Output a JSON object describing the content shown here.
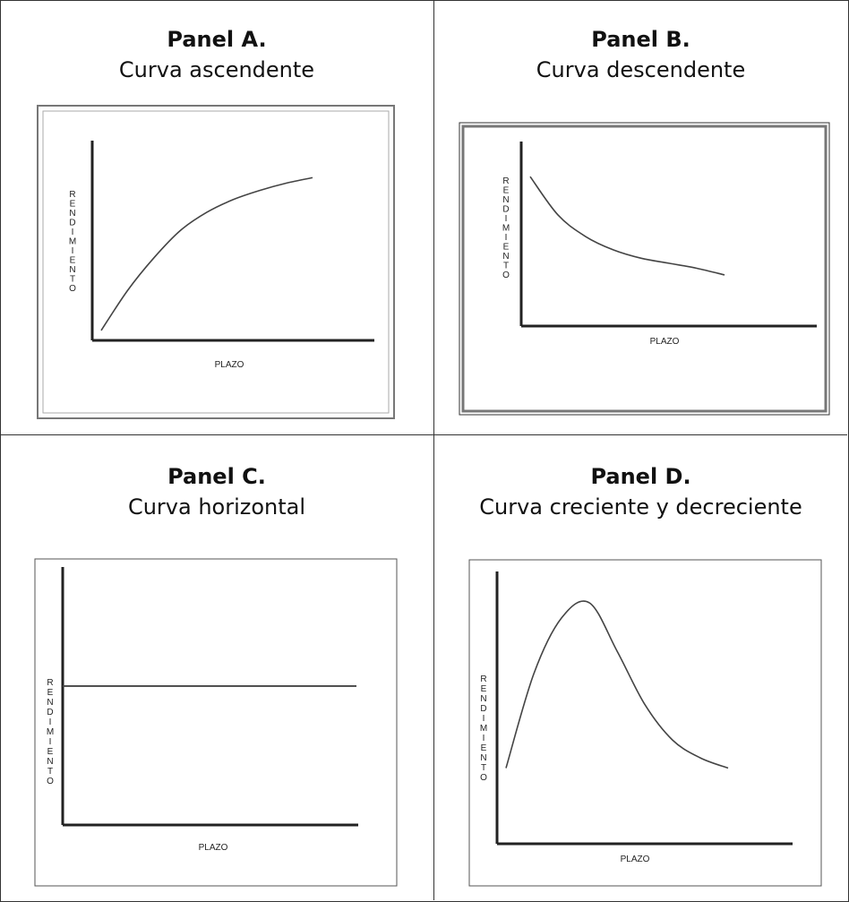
{
  "panels": [
    {
      "heading": "Panel A.",
      "subtitle": "Curva ascendente"
    },
    {
      "heading": "Panel B.",
      "subtitle": "Curva descendente"
    },
    {
      "heading": "Panel C.",
      "subtitle": "Curva horizontal"
    },
    {
      "heading": "Panel D.",
      "subtitle": "Curva creciente y decreciente"
    }
  ],
  "chart_data": [
    {
      "type": "line",
      "title": "Curva ascendente",
      "xlabel": "PLAZO",
      "ylabel": "RENDIMIENTO",
      "xlim": [
        0,
        10
      ],
      "ylim": [
        0,
        10
      ],
      "series": [
        {
          "x": [
            0,
            1,
            2,
            3,
            4,
            5,
            6,
            7,
            8
          ],
          "y": [
            0.3,
            2.5,
            4.3,
            5.8,
            6.8,
            7.5,
            8.0,
            8.4,
            8.7
          ]
        }
      ]
    },
    {
      "type": "line",
      "title": "Curva descendente",
      "xlabel": "PLAZO",
      "ylabel": "RENDIMIENTO",
      "xlim": [
        0,
        10
      ],
      "ylim": [
        0,
        10
      ],
      "series": [
        {
          "x": [
            0,
            1,
            2,
            3,
            4,
            5,
            6,
            7
          ],
          "y": [
            8.7,
            6.4,
            5.1,
            4.3,
            3.8,
            3.5,
            3.2,
            2.8
          ]
        }
      ]
    },
    {
      "type": "line",
      "title": "Curva horizontal",
      "xlabel": "PLAZO",
      "ylabel": "RENDIMIENTO",
      "xlim": [
        0,
        10
      ],
      "ylim": [
        0,
        10
      ],
      "series": [
        {
          "x": [
            0,
            10
          ],
          "y": [
            5.6,
            5.6
          ]
        }
      ]
    },
    {
      "type": "line",
      "title": "Curva creciente y decreciente",
      "xlabel": "PLAZO",
      "ylabel": "RENDIMIENTO",
      "xlim": [
        0,
        10
      ],
      "ylim": [
        0,
        10
      ],
      "series": [
        {
          "x": [
            0,
            1,
            2,
            3,
            4,
            5,
            6,
            7,
            8
          ],
          "y": [
            2.8,
            6.5,
            8.7,
            9.3,
            7.4,
            5.3,
            3.9,
            3.2,
            2.8
          ]
        }
      ]
    }
  ]
}
